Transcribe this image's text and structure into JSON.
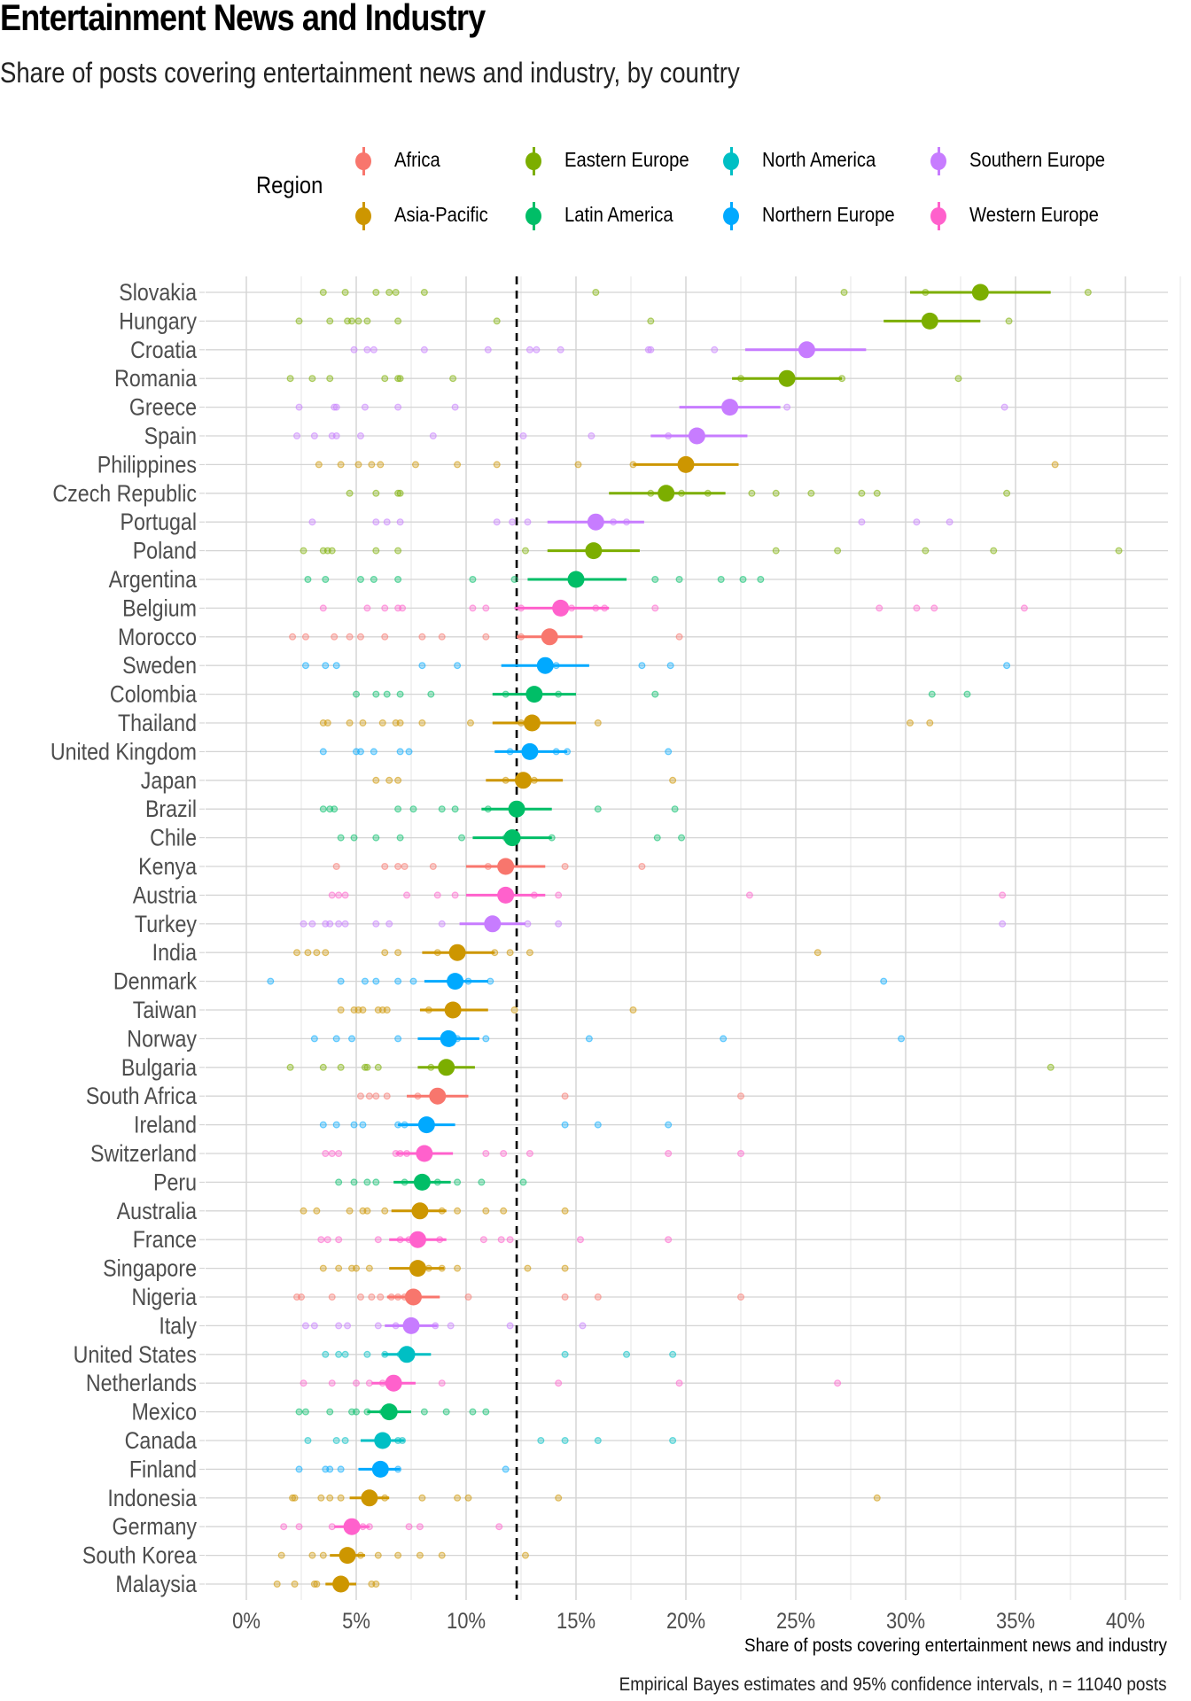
{
  "title": "Entertainment News and Industry",
  "subtitle": "Share of posts covering entertainment news and industry, by country",
  "caption": "Empirical Bayes estimates and 95% confidence intervals, n = 11040 posts",
  "legend": {
    "title": "Region",
    "items": [
      {
        "label": "Africa",
        "color": "#F8766D"
      },
      {
        "label": "Asia-Pacific",
        "color": "#CD9600"
      },
      {
        "label": "Eastern Europe",
        "color": "#7CAE00"
      },
      {
        "label": "Latin America",
        "color": "#00BE67"
      },
      {
        "label": "North America",
        "color": "#00BFC4"
      },
      {
        "label": "Northern Europe",
        "color": "#00A9FF"
      },
      {
        "label": "Southern Europe",
        "color": "#C77CFF"
      },
      {
        "label": "Western Europe",
        "color": "#FF61CC"
      }
    ]
  },
  "chart_data": {
    "type": "scatter",
    "title": "Entertainment News and Industry",
    "subtitle": "Share of posts covering entertainment news and industry, by country",
    "xlabel": "Share of posts covering entertainment news and industry",
    "ylabel": "",
    "xlim": [
      -1,
      42
    ],
    "x_ticks": [
      0,
      5,
      10,
      15,
      20,
      25,
      30,
      35,
      40
    ],
    "x_tick_labels": [
      "0%",
      "5%",
      "10%",
      "15%",
      "20%",
      "25%",
      "30%",
      "35%",
      "40%"
    ],
    "reference_line": 12.3,
    "grid": true,
    "legend_position": "top",
    "series": [
      {
        "country": "Slovakia",
        "region": "Eastern Europe",
        "estimate": 33.4,
        "ci": [
          30.2,
          36.6
        ],
        "points": [
          3.5,
          4.5,
          5.9,
          6.5,
          6.8,
          8.1,
          15.9,
          27.2,
          30.9,
          38.3
        ]
      },
      {
        "country": "Hungary",
        "region": "Eastern Europe",
        "estimate": 31.1,
        "ci": [
          29.0,
          33.4
        ],
        "points": [
          2.4,
          3.8,
          4.6,
          4.8,
          5.1,
          5.5,
          6.9,
          11.4,
          18.4,
          34.7
        ]
      },
      {
        "country": "Croatia",
        "region": "Southern Europe",
        "estimate": 25.5,
        "ci": [
          22.7,
          28.2
        ],
        "points": [
          4.9,
          5.5,
          5.8,
          8.1,
          11.0,
          12.9,
          13.2,
          14.3,
          18.3,
          18.4,
          21.3
        ]
      },
      {
        "country": "Romania",
        "region": "Eastern Europe",
        "estimate": 24.6,
        "ci": [
          22.1,
          27.1
        ],
        "points": [
          2.0,
          3.0,
          3.8,
          6.3,
          6.9,
          7.0,
          9.4,
          22.5,
          27.1,
          32.4
        ]
      },
      {
        "country": "Greece",
        "region": "Southern Europe",
        "estimate": 22.0,
        "ci": [
          19.7,
          24.3
        ],
        "points": [
          2.4,
          4.0,
          4.1,
          5.4,
          6.9,
          9.5,
          24.6,
          34.5
        ]
      },
      {
        "country": "Spain",
        "region": "Southern Europe",
        "estimate": 20.5,
        "ci": [
          18.4,
          22.8
        ],
        "points": [
          2.3,
          3.1,
          3.9,
          4.1,
          5.2,
          8.5,
          12.6,
          15.7,
          19.2
        ]
      },
      {
        "country": "Philippines",
        "region": "Asia-Pacific",
        "estimate": 20.0,
        "ci": [
          17.6,
          22.4
        ],
        "points": [
          3.3,
          4.3,
          5.1,
          5.7,
          6.1,
          7.7,
          9.6,
          11.4,
          15.1,
          17.6,
          36.8
        ]
      },
      {
        "country": "Czech Republic",
        "region": "Eastern Europe",
        "estimate": 19.1,
        "ci": [
          16.5,
          21.8
        ],
        "points": [
          4.7,
          5.9,
          6.9,
          7.0,
          18.4,
          19.8,
          21.0,
          23.0,
          24.1,
          25.7,
          28.0,
          28.7,
          34.6
        ]
      },
      {
        "country": "Portugal",
        "region": "Southern Europe",
        "estimate": 15.9,
        "ci": [
          13.7,
          18.1
        ],
        "points": [
          3.0,
          5.9,
          6.4,
          7.0,
          11.4,
          12.1,
          12.8,
          16.7,
          17.3,
          28.0,
          30.5,
          32.0
        ]
      },
      {
        "country": "Poland",
        "region": "Eastern Europe",
        "estimate": 15.8,
        "ci": [
          13.7,
          17.9
        ],
        "points": [
          2.6,
          3.5,
          3.7,
          3.9,
          5.9,
          6.9,
          12.7,
          24.1,
          26.9,
          30.9,
          34.0,
          39.7
        ]
      },
      {
        "country": "Argentina",
        "region": "Latin America",
        "estimate": 15.0,
        "ci": [
          12.8,
          17.3
        ],
        "points": [
          2.8,
          3.6,
          5.2,
          5.8,
          6.9,
          10.3,
          12.2,
          18.6,
          19.7,
          21.6,
          22.6,
          23.4
        ]
      },
      {
        "country": "Belgium",
        "region": "Western Europe",
        "estimate": 14.3,
        "ci": [
          12.2,
          16.5
        ],
        "points": [
          3.5,
          5.5,
          6.3,
          6.9,
          7.1,
          10.3,
          10.9,
          12.5,
          14.8,
          15.9,
          16.3,
          18.6,
          28.8,
          30.5,
          31.3,
          35.4
        ]
      },
      {
        "country": "Morocco",
        "region": "Africa",
        "estimate": 13.8,
        "ci": [
          12.3,
          15.3
        ],
        "points": [
          2.1,
          2.7,
          4.0,
          4.7,
          5.2,
          6.3,
          8.0,
          8.9,
          10.9,
          12.5,
          19.7
        ]
      },
      {
        "country": "Sweden",
        "region": "Northern Europe",
        "estimate": 13.6,
        "ci": [
          11.6,
          15.6
        ],
        "points": [
          2.7,
          3.6,
          4.1,
          8.0,
          9.6,
          14.1,
          18.0,
          19.3,
          34.6
        ]
      },
      {
        "country": "Colombia",
        "region": "Latin America",
        "estimate": 13.1,
        "ci": [
          11.2,
          15.0
        ],
        "points": [
          5.0,
          5.9,
          6.4,
          7.0,
          8.4,
          11.8,
          14.2,
          18.6,
          31.2,
          32.8
        ]
      },
      {
        "country": "Thailand",
        "region": "Asia-Pacific",
        "estimate": 13.0,
        "ci": [
          11.2,
          15.0
        ],
        "points": [
          3.5,
          3.7,
          4.7,
          5.3,
          6.2,
          6.8,
          7.0,
          8.0,
          10.2,
          12.5,
          16.0,
          30.2,
          31.1
        ]
      },
      {
        "country": "United Kingdom",
        "region": "Northern Europe",
        "estimate": 12.9,
        "ci": [
          11.3,
          14.6
        ],
        "points": [
          3.5,
          5.0,
          5.2,
          5.8,
          7.0,
          7.4,
          12.0,
          14.1,
          14.6,
          19.2
        ]
      },
      {
        "country": "Japan",
        "region": "Asia-Pacific",
        "estimate": 12.6,
        "ci": [
          10.9,
          14.4
        ],
        "points": [
          5.9,
          6.5,
          6.9,
          11.8,
          13.1,
          19.4
        ]
      },
      {
        "country": "Brazil",
        "region": "Latin America",
        "estimate": 12.3,
        "ci": [
          10.7,
          13.9
        ],
        "points": [
          3.5,
          3.8,
          4.0,
          6.9,
          7.6,
          8.9,
          9.5,
          11.0,
          16.0,
          19.5
        ]
      },
      {
        "country": "Chile",
        "region": "Latin America",
        "estimate": 12.1,
        "ci": [
          10.3,
          13.9
        ],
        "points": [
          4.3,
          4.9,
          5.9,
          7.0,
          9.8,
          11.8,
          13.9,
          18.7,
          19.8
        ]
      },
      {
        "country": "Kenya",
        "region": "Africa",
        "estimate": 11.8,
        "ci": [
          10.0,
          13.6
        ],
        "points": [
          4.1,
          6.3,
          6.9,
          7.2,
          8.5,
          11.0,
          14.5,
          18.0
        ]
      },
      {
        "country": "Austria",
        "region": "Western Europe",
        "estimate": 11.8,
        "ci": [
          10.0,
          13.6
        ],
        "points": [
          3.9,
          4.2,
          4.5,
          7.3,
          8.7,
          9.5,
          13.1,
          14.2,
          22.9,
          34.4
        ]
      },
      {
        "country": "Turkey",
        "region": "Southern Europe",
        "estimate": 11.2,
        "ci": [
          9.7,
          12.7
        ],
        "points": [
          2.6,
          3.0,
          3.6,
          3.8,
          4.2,
          4.5,
          5.9,
          6.5,
          8.9,
          12.8,
          14.2,
          34.4
        ]
      },
      {
        "country": "India",
        "region": "Asia-Pacific",
        "estimate": 9.6,
        "ci": [
          8.0,
          11.3
        ],
        "points": [
          2.3,
          2.8,
          3.2,
          3.6,
          6.3,
          6.9,
          8.7,
          11.3,
          12.0,
          12.9,
          26.0
        ]
      },
      {
        "country": "Denmark",
        "region": "Northern Europe",
        "estimate": 9.5,
        "ci": [
          8.1,
          11.0
        ],
        "points": [
          1.1,
          4.3,
          5.4,
          5.9,
          6.9,
          7.6,
          10.1,
          11.1,
          29.0
        ]
      },
      {
        "country": "Taiwan",
        "region": "Asia-Pacific",
        "estimate": 9.4,
        "ci": [
          7.9,
          11.0
        ],
        "points": [
          4.3,
          4.9,
          5.1,
          5.3,
          6.0,
          6.2,
          6.4,
          8.3,
          12.2,
          17.6
        ]
      },
      {
        "country": "Norway",
        "region": "Northern Europe",
        "estimate": 9.2,
        "ci": [
          7.8,
          10.6
        ],
        "points": [
          3.1,
          4.1,
          4.8,
          6.9,
          9.6,
          10.9,
          15.6,
          21.7,
          29.8
        ]
      },
      {
        "country": "Bulgaria",
        "region": "Eastern Europe",
        "estimate": 9.1,
        "ci": [
          7.8,
          10.4
        ],
        "points": [
          2.0,
          3.5,
          4.3,
          5.4,
          5.5,
          6.0,
          8.4,
          36.6
        ]
      },
      {
        "country": "South Africa",
        "region": "Africa",
        "estimate": 8.7,
        "ci": [
          7.3,
          10.1
        ],
        "points": [
          5.2,
          5.6,
          5.9,
          6.4,
          7.8,
          14.5,
          22.5
        ]
      },
      {
        "country": "Ireland",
        "region": "Northern Europe",
        "estimate": 8.2,
        "ci": [
          6.9,
          9.5
        ],
        "points": [
          3.5,
          4.1,
          4.9,
          5.3,
          6.9,
          7.2,
          14.5,
          16.0,
          19.2
        ]
      },
      {
        "country": "Switzerland",
        "region": "Western Europe",
        "estimate": 8.1,
        "ci": [
          6.8,
          9.4
        ],
        "points": [
          3.6,
          3.9,
          4.2,
          6.8,
          7.0,
          7.3,
          10.9,
          11.7,
          12.9,
          19.2,
          22.5
        ]
      },
      {
        "country": "Peru",
        "region": "Latin America",
        "estimate": 8.0,
        "ci": [
          6.7,
          9.3
        ],
        "points": [
          4.2,
          4.9,
          5.5,
          5.9,
          7.2,
          8.0,
          8.7,
          9.6,
          10.7,
          12.6
        ]
      },
      {
        "country": "Australia",
        "region": "Asia-Pacific",
        "estimate": 7.9,
        "ci": [
          6.6,
          9.1
        ],
        "points": [
          2.6,
          3.2,
          4.7,
          5.3,
          5.5,
          6.3,
          8.9,
          9.6,
          10.9,
          11.7,
          14.5
        ]
      },
      {
        "country": "France",
        "region": "Western Europe",
        "estimate": 7.8,
        "ci": [
          6.5,
          9.1
        ],
        "points": [
          3.4,
          3.7,
          4.2,
          6.0,
          7.0,
          7.4,
          8.8,
          10.8,
          11.6,
          12.0,
          15.2,
          19.2
        ]
      },
      {
        "country": "Singapore",
        "region": "Asia-Pacific",
        "estimate": 7.8,
        "ci": [
          6.5,
          9.0
        ],
        "points": [
          3.5,
          4.2,
          4.8,
          5.0,
          5.6,
          8.3,
          8.9,
          9.6,
          12.8,
          14.5
        ]
      },
      {
        "country": "Nigeria",
        "region": "Africa",
        "estimate": 7.6,
        "ci": [
          6.4,
          8.8
        ],
        "points": [
          2.3,
          2.5,
          3.9,
          5.2,
          5.7,
          6.1,
          6.6,
          6.9,
          7.2,
          10.1,
          14.5,
          16.0,
          22.5
        ]
      },
      {
        "country": "Italy",
        "region": "Southern Europe",
        "estimate": 7.5,
        "ci": [
          6.3,
          8.7
        ],
        "points": [
          2.7,
          3.1,
          4.2,
          4.6,
          6.0,
          6.8,
          7.4,
          8.6,
          9.3,
          12.0,
          15.3
        ]
      },
      {
        "country": "United States",
        "region": "North America",
        "estimate": 7.3,
        "ci": [
          6.2,
          8.4
        ],
        "points": [
          3.6,
          4.2,
          4.5,
          5.5,
          6.3,
          7.0,
          14.5,
          17.3,
          19.4
        ]
      },
      {
        "country": "Netherlands",
        "region": "Western Europe",
        "estimate": 6.7,
        "ci": [
          5.7,
          7.7
        ],
        "points": [
          2.6,
          3.9,
          5.0,
          5.6,
          6.2,
          8.9,
          14.2,
          19.7,
          26.9
        ]
      },
      {
        "country": "Mexico",
        "region": "Latin America",
        "estimate": 6.5,
        "ci": [
          5.5,
          7.5
        ],
        "points": [
          2.4,
          2.7,
          3.8,
          4.8,
          5.0,
          5.5,
          6.2,
          8.1,
          9.1,
          10.3,
          10.9
        ]
      },
      {
        "country": "Canada",
        "region": "North America",
        "estimate": 6.2,
        "ci": [
          5.2,
          7.2
        ],
        "points": [
          2.8,
          4.1,
          4.5,
          6.9,
          7.1,
          13.4,
          14.5,
          16.0,
          19.4
        ]
      },
      {
        "country": "Finland",
        "region": "Northern Europe",
        "estimate": 6.1,
        "ci": [
          5.1,
          7.0
        ],
        "points": [
          2.4,
          3.6,
          3.8,
          4.3,
          6.0,
          6.9,
          11.8
        ]
      },
      {
        "country": "Indonesia",
        "region": "Asia-Pacific",
        "estimate": 5.6,
        "ci": [
          4.7,
          6.5
        ],
        "points": [
          2.1,
          2.2,
          3.4,
          3.8,
          4.3,
          6.3,
          8.0,
          9.6,
          10.1,
          14.2,
          28.7
        ]
      },
      {
        "country": "Germany",
        "region": "Western Europe",
        "estimate": 4.8,
        "ci": [
          4.0,
          5.6
        ],
        "points": [
          1.7,
          2.4,
          3.9,
          4.8,
          5.0,
          5.3,
          5.6,
          7.4,
          7.9,
          11.5
        ]
      },
      {
        "country": "South Korea",
        "region": "Asia-Pacific",
        "estimate": 4.6,
        "ci": [
          3.8,
          5.4
        ],
        "points": [
          1.6,
          3.0,
          3.5,
          4.7,
          5.2,
          6.0,
          6.9,
          7.9,
          8.9,
          12.7
        ]
      },
      {
        "country": "Malaysia",
        "region": "Asia-Pacific",
        "estimate": 4.3,
        "ci": [
          3.6,
          5.0
        ],
        "points": [
          1.4,
          2.2,
          3.1,
          3.2,
          5.7,
          5.9
        ]
      }
    ]
  }
}
